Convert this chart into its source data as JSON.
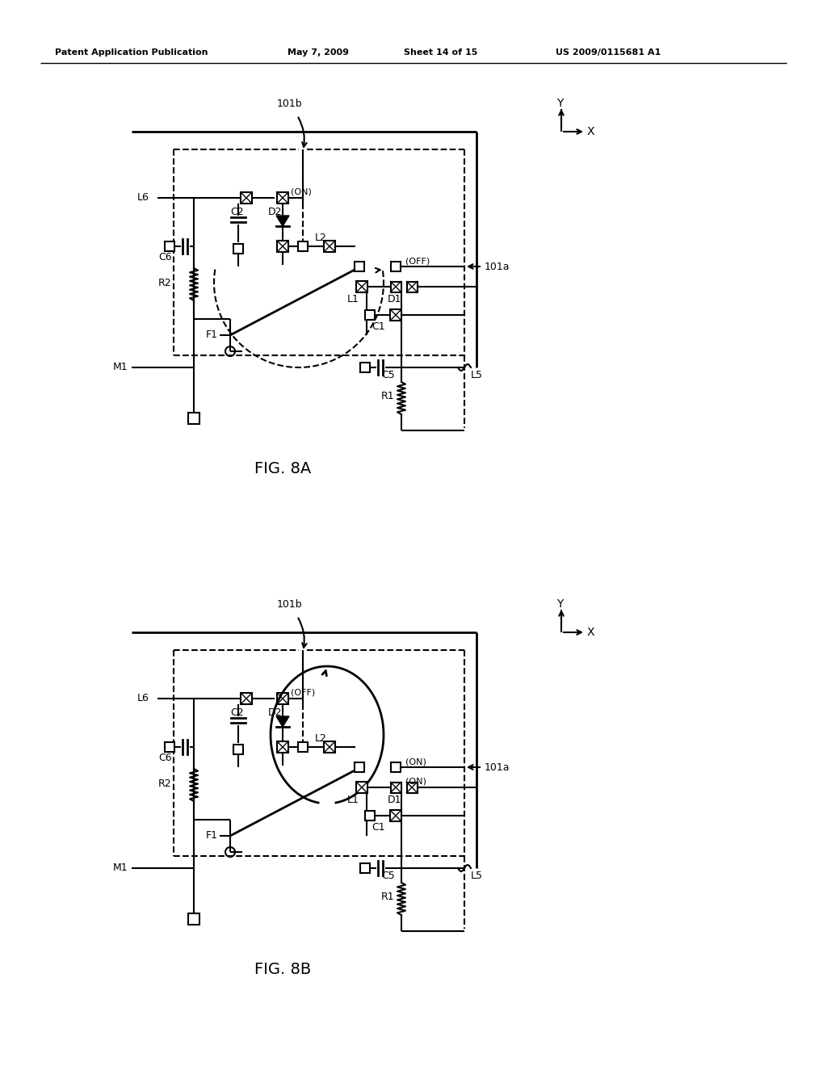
{
  "bg_color": "#ffffff",
  "header_text": "Patent Application Publication",
  "header_date": "May 7, 2009",
  "header_sheet": "Sheet 14 of 15",
  "header_patent": "US 2009/0115681 A1",
  "fig_a_label": "FIG. 8A",
  "fig_b_label": "FIG. 8B",
  "figsize": [
    10.24,
    13.2
  ],
  "dpi": 100
}
